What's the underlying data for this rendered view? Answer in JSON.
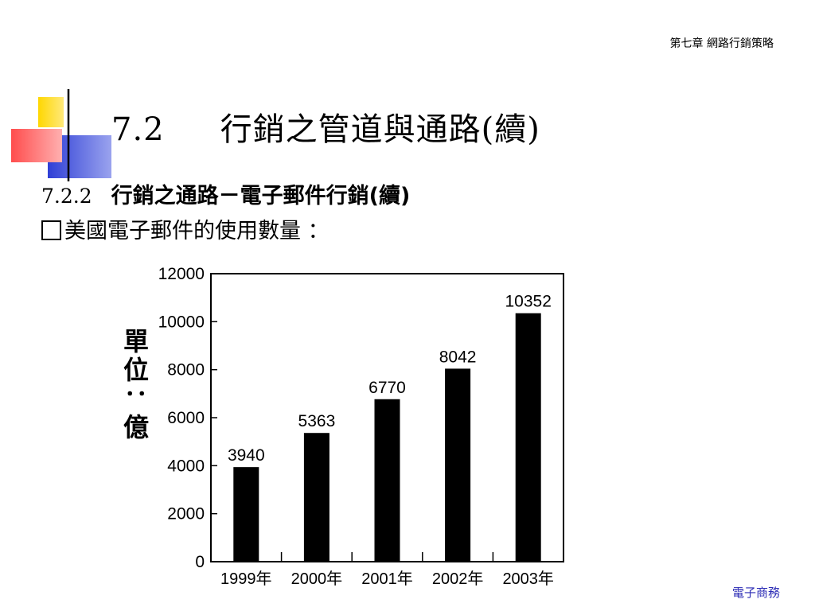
{
  "header": {
    "chapter": "第七章  網路行銷策略"
  },
  "slide": {
    "title_number": "7.2",
    "title_text": "行銷之管道與通路(續)",
    "subtitle_number": "7.2.2",
    "subtitle_text": "行銷之通路－電子郵件行銷(續)",
    "bullet_text": "美國電子郵件的使用數量 ："
  },
  "footer": {
    "label": "電子商務"
  },
  "colors": {
    "accent_yellow": "#ffd700",
    "accent_red": "#ff4d4d",
    "accent_blue": "#2f3fd6",
    "footer_blue": "#2b2bb5"
  },
  "chart_data": {
    "type": "bar",
    "categories": [
      "1999年",
      "2000年",
      "2001年",
      "2002年",
      "2003年"
    ],
    "values": [
      3940,
      5363,
      6770,
      8042,
      10352
    ],
    "data_labels": [
      "3940",
      "5363",
      "6770",
      "8042",
      "10352"
    ],
    "yticks": [
      0,
      2000,
      4000,
      6000,
      8000,
      10000,
      12000
    ],
    "ylim": [
      0,
      12000
    ],
    "ylabel": "單位：億",
    "grid": false,
    "bar_color": "#000000"
  }
}
